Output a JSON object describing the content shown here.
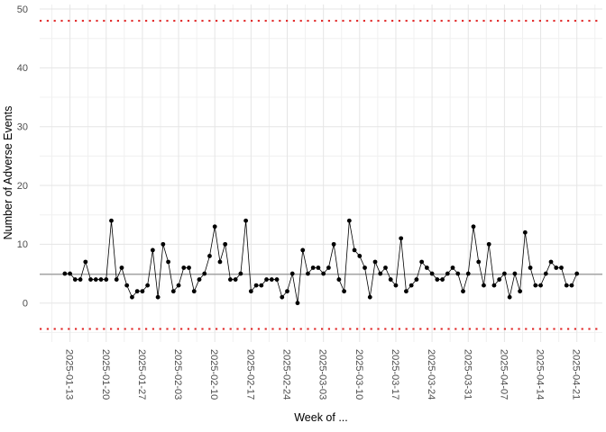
{
  "chart_data": {
    "type": "line",
    "title": "",
    "xlabel": "Week of ...",
    "ylabel": "Number of Adverse Events",
    "legend": "none",
    "grid": "on",
    "start_date": "2025-01-12",
    "end_date": "2025-04-21",
    "point_interval": "daily",
    "x_tick_labels": [
      "2025-01-13",
      "2025-01-20",
      "2025-01-27",
      "2025-02-03",
      "2025-02-10",
      "2025-02-17",
      "2025-02-24",
      "2025-03-03",
      "2025-03-10",
      "2025-03-17",
      "2025-03-24",
      "2025-03-31",
      "2025-04-07",
      "2025-04-14",
      "2025-04-21"
    ],
    "y_ticks": [
      0,
      10,
      20,
      30,
      40,
      50
    ],
    "ylim": [
      -6.6,
      50.8
    ],
    "values": [
      5,
      5,
      4,
      4,
      7,
      4,
      4,
      4,
      4,
      14,
      4,
      6,
      3,
      1,
      2,
      2,
      3,
      9,
      1,
      10,
      7,
      2,
      3,
      6,
      6,
      2,
      4,
      5,
      8,
      13,
      7,
      10,
      4,
      4,
      5,
      14,
      2,
      3,
      3,
      4,
      4,
      4,
      1,
      2,
      5,
      0,
      9,
      5,
      6,
      6,
      5,
      6,
      10,
      4,
      2,
      14,
      9,
      8,
      6,
      1,
      7,
      5,
      6,
      4,
      3,
      11,
      2,
      3,
      4,
      7,
      6,
      5,
      4,
      4,
      5,
      6,
      5,
      2,
      5,
      13,
      7,
      3,
      10,
      3,
      4,
      5,
      1,
      5,
      2,
      12,
      6,
      3,
      3,
      5,
      7,
      6,
      6,
      3,
      3,
      5
    ],
    "center_line": 5,
    "upper_limit": 48,
    "lower_limit": -4.4,
    "colors": {
      "point": "#000000",
      "series_line": "#000000",
      "center_line": "#8a8a8a",
      "limit_line": "#e02020",
      "grid_major": "#e5e5e5",
      "grid_minor": "#f0f0f0",
      "tick_text": "#4d4d4d",
      "axis_title_text": "#000000",
      "background": "#ffffff"
    }
  }
}
